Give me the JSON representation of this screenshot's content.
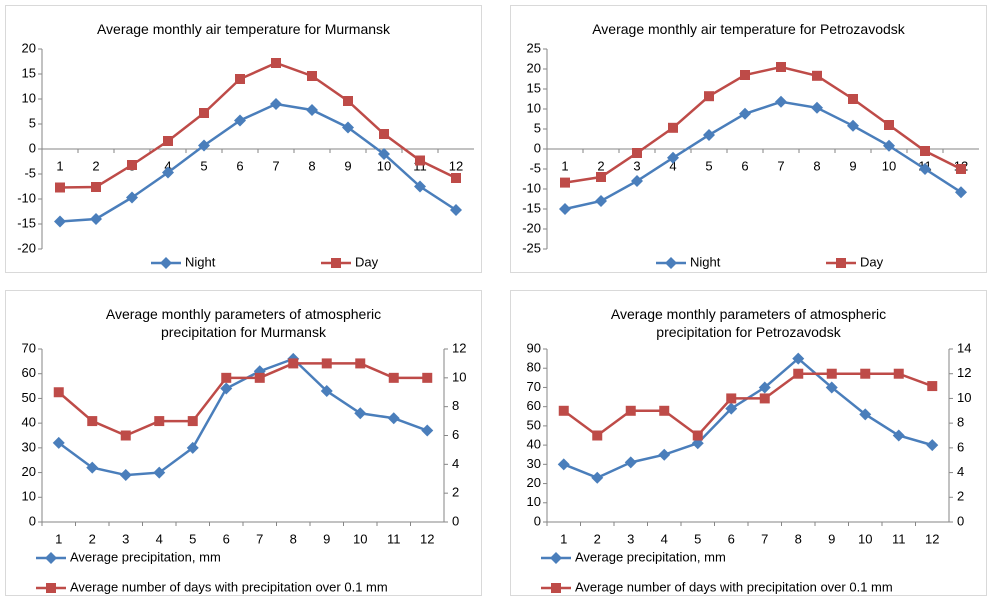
{
  "chart_data": [
    {
      "type": "line",
      "title": "Average monthly air temperature for Murmansk",
      "categories": [
        "1",
        "2",
        "3",
        "4",
        "5",
        "6",
        "7",
        "8",
        "9",
        "10",
        "11",
        "12"
      ],
      "series": [
        {
          "name": "Night",
          "color": "#4a7ebb",
          "marker": "diamond",
          "values": [
            -14.5,
            -14,
            -9.7,
            -4.7,
            0.7,
            5.7,
            9,
            7.8,
            4.3,
            -1,
            -7.5,
            -12.2
          ]
        },
        {
          "name": "Day",
          "color": "#be4b48",
          "marker": "square",
          "values": [
            -7.7,
            -7.6,
            -3.2,
            1.6,
            7.2,
            14,
            17.2,
            14.6,
            9.6,
            3,
            -2.3,
            -5.8
          ]
        }
      ],
      "ylim": [
        -20,
        20
      ],
      "yticks": [
        -20,
        -15,
        -10,
        -5,
        0,
        5,
        10,
        15,
        20
      ],
      "grid": false,
      "legend": "bottom"
    },
    {
      "type": "line",
      "title": "Average monthly air temperature for Petrozavodsk",
      "categories": [
        "1",
        "2",
        "3",
        "4",
        "5",
        "6",
        "7",
        "8",
        "9",
        "10",
        "11",
        "12"
      ],
      "series": [
        {
          "name": "Night",
          "color": "#4a7ebb",
          "marker": "diamond",
          "values": [
            -15,
            -13,
            -8,
            -2.2,
            3.5,
            8.8,
            11.8,
            10.3,
            5.8,
            0.8,
            -5,
            -10.8
          ]
        },
        {
          "name": "Day",
          "color": "#be4b48",
          "marker": "square",
          "values": [
            -8.4,
            -7,
            -1,
            5.3,
            13.2,
            18.5,
            20.5,
            18.3,
            12.5,
            6,
            -0.5,
            -5
          ]
        }
      ],
      "ylim": [
        -25,
        25
      ],
      "yticks": [
        -25,
        -20,
        -15,
        -10,
        -5,
        0,
        5,
        10,
        15,
        20,
        25
      ],
      "grid": false,
      "legend": "bottom"
    },
    {
      "type": "line",
      "title": "Average monthly parameters of atmospheric precipitation for Murmansk",
      "categories": [
        "1",
        "2",
        "3",
        "4",
        "5",
        "6",
        "7",
        "8",
        "9",
        "10",
        "11",
        "12"
      ],
      "series": [
        {
          "name": "Average precipitation, mm",
          "color": "#4a7ebb",
          "marker": "diamond",
          "values": [
            32,
            22,
            19,
            20,
            30,
            54,
            61,
            66,
            53,
            44,
            42,
            37
          ]
        },
        {
          "name": "Average number of days with precipitation over 0.1 mm",
          "color": "#be4b48",
          "marker": "square",
          "axis": "y2",
          "values": [
            9,
            7,
            6,
            7,
            7,
            10,
            10,
            11,
            11,
            11,
            10,
            10
          ]
        }
      ],
      "ylim": [
        0,
        70
      ],
      "yticks": [
        0,
        10,
        20,
        30,
        40,
        50,
        60,
        70
      ],
      "y2lim": [
        0,
        12
      ],
      "y2ticks": [
        0,
        2,
        4,
        6,
        8,
        10,
        12
      ],
      "grid": false,
      "legend": "bottom"
    },
    {
      "type": "line",
      "title": "Average monthly parameters of atmospheric precipitation for Petrozavodsk",
      "categories": [
        "1",
        "2",
        "3",
        "4",
        "5",
        "6",
        "7",
        "8",
        "9",
        "10",
        "11",
        "12"
      ],
      "series": [
        {
          "name": "Average precipitation, mm",
          "color": "#4a7ebb",
          "marker": "diamond",
          "values": [
            30,
            23,
            31,
            35,
            41,
            59,
            70,
            85,
            70,
            56,
            45,
            40
          ]
        },
        {
          "name": "Average number of days with precipitation over 0.1 mm",
          "color": "#be4b48",
          "marker": "square",
          "axis": "y2",
          "values": [
            9,
            7,
            9,
            9,
            7,
            10,
            10,
            12,
            12,
            12,
            12,
            11
          ]
        }
      ],
      "ylim": [
        0,
        90
      ],
      "yticks": [
        0,
        10,
        20,
        30,
        40,
        50,
        60,
        70,
        80,
        90
      ],
      "y2lim": [
        0,
        14
      ],
      "y2ticks": [
        0,
        2,
        4,
        6,
        8,
        10,
        12,
        14
      ],
      "grid": false,
      "legend": "bottom"
    }
  ]
}
